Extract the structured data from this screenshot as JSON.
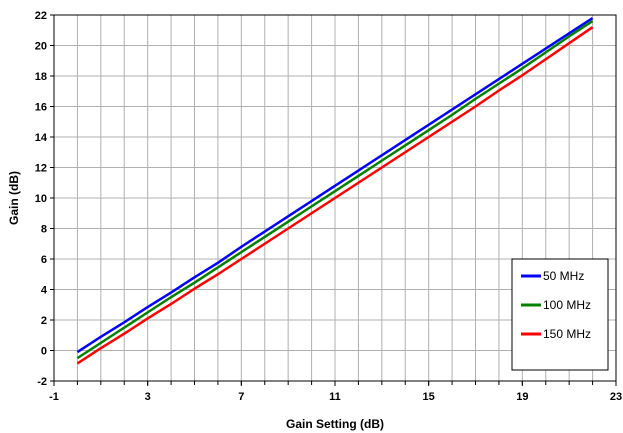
{
  "chart_data": {
    "type": "line",
    "xlabel": "Gain Setting (dB)",
    "ylabel": "Gain (dB)",
    "xlim": [
      -1,
      23
    ],
    "ylim": [
      -2,
      22
    ],
    "xticks": [
      "-1",
      "3",
      "7",
      "11",
      "15",
      "19",
      "23"
    ],
    "yticks": [
      "-2",
      "0",
      "2",
      "4",
      "6",
      "8",
      "10",
      "12",
      "14",
      "16",
      "18",
      "20",
      "22"
    ],
    "x_minor_step": 1,
    "grid": true,
    "legend_position": "bottom-right",
    "x": [
      0,
      1,
      2,
      3,
      4,
      5,
      6,
      7,
      8,
      9,
      10,
      11,
      12,
      13,
      14,
      15,
      16,
      17,
      18,
      19,
      20,
      21,
      22
    ],
    "series": [
      {
        "name": "50 MHz",
        "color": "#0000ff",
        "values": [
          -0.1,
          0.9,
          1.85,
          2.85,
          3.8,
          4.8,
          5.75,
          6.8,
          7.8,
          8.8,
          9.8,
          10.8,
          11.8,
          12.8,
          13.8,
          14.8,
          15.8,
          16.8,
          17.8,
          18.8,
          19.8,
          20.8,
          21.8
        ]
      },
      {
        "name": "100 MHz",
        "color": "#008000",
        "values": [
          -0.5,
          0.5,
          1.5,
          2.5,
          3.5,
          4.45,
          5.45,
          6.45,
          7.45,
          8.45,
          9.45,
          10.45,
          11.45,
          12.45,
          13.45,
          14.45,
          15.45,
          16.5,
          17.5,
          18.5,
          19.55,
          20.6,
          21.6
        ]
      },
      {
        "name": "150 MHz",
        "color": "#ff0000",
        "values": [
          -0.85,
          0.15,
          1.1,
          2.1,
          3.05,
          4.05,
          5.0,
          6.0,
          7.0,
          8.0,
          9.0,
          10.0,
          11.0,
          12.0,
          13.0,
          14.0,
          15.0,
          16.0,
          17.05,
          18.05,
          19.1,
          20.15,
          21.2
        ]
      }
    ]
  }
}
